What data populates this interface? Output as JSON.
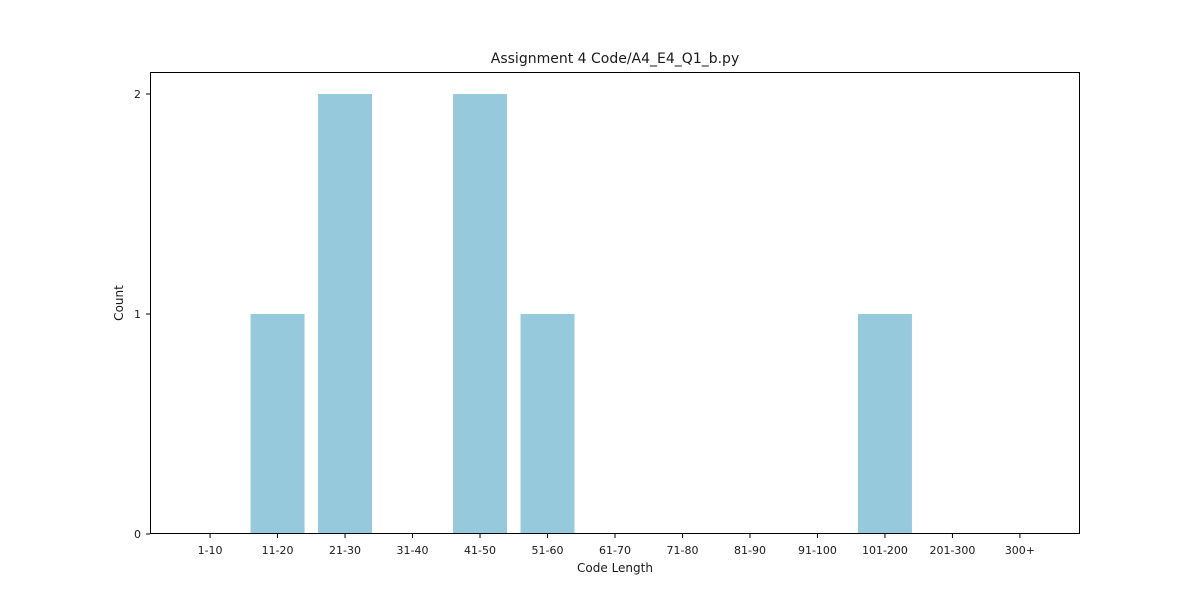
{
  "chart_data": {
    "type": "bar",
    "title": "Assignment 4 Code/A4_E4_Q1_b.py",
    "xlabel": "Code Length",
    "ylabel": "Count",
    "categories": [
      "1-10",
      "11-20",
      "21-30",
      "31-40",
      "41-50",
      "51-60",
      "61-70",
      "71-80",
      "81-90",
      "91-100",
      "101-200",
      "201-300",
      "300+"
    ],
    "values": [
      0,
      1,
      2,
      0,
      2,
      1,
      0,
      0,
      0,
      0,
      1,
      0,
      0
    ],
    "ylim": [
      0,
      2.1
    ],
    "yticks": [
      0,
      1,
      2
    ],
    "grid": false,
    "legend": "none",
    "bar_color": "#96c9dc"
  }
}
